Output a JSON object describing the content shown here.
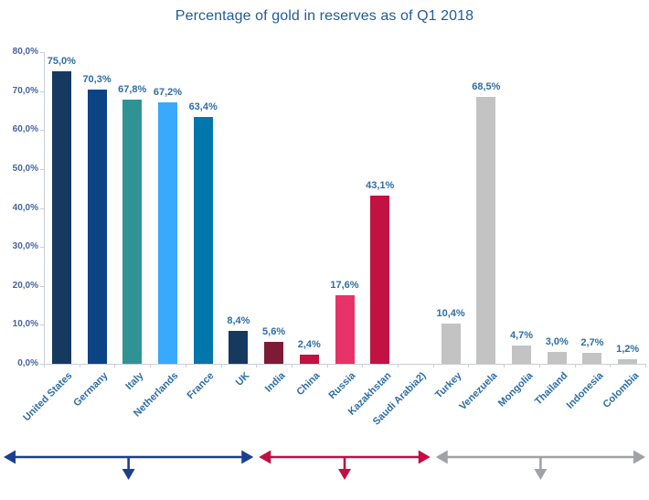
{
  "chart_data": {
    "type": "bar",
    "title": "Percentage of gold in reserves as of Q1 2018",
    "xlabel": "",
    "ylabel": "",
    "ylim": [
      0,
      80
    ],
    "grid": false,
    "legend": "none",
    "y_tick_labels_top_to_bottom": [
      "80,0%",
      "70,0%",
      "60,0%",
      "50,0%",
      "40,0%",
      "30,0%",
      "20,0%",
      "10,0%",
      "0,0%"
    ],
    "categories": [
      "United States",
      "Germany",
      "Italy",
      "Netherlands",
      "France",
      "UK",
      "India",
      "China",
      "Russia",
      "Kazakhstan",
      "Saudi Arabia2)",
      "Turkey",
      "Venezuela",
      "Mongolia",
      "Thailand",
      "Indonesia",
      "Colombia"
    ],
    "values": [
      75.0,
      70.3,
      67.8,
      67.2,
      63.4,
      8.4,
      5.6,
      2.4,
      17.6,
      43.1,
      null,
      10.4,
      68.5,
      4.7,
      3.0,
      2.7,
      1.2
    ],
    "value_labels": [
      "75,0%",
      "70,3%",
      "67,8%",
      "67,2%",
      "63,4%",
      "8,4%",
      "5,6%",
      "2,4%",
      "17,6%",
      "43,1%",
      "",
      "10,4%",
      "68,5%",
      "4,7%",
      "3,0%",
      "2,7%",
      "1,2%"
    ],
    "bar_colors": [
      "#16395F",
      "#0B4385",
      "#2F9394",
      "#38A9FC",
      "#0077AC",
      "#16395F",
      "#7D1B37",
      "#C11243",
      "#E7336A",
      "#C11243",
      null,
      "#C3C3C3",
      "#C3C3C3",
      "#C3C3C3",
      "#C3C3C3",
      "#C3C3C3",
      "#C3C3C3"
    ],
    "group_arrows": [
      {
        "color": "#1C3E92",
        "from_category": "United States",
        "to_category": "UK"
      },
      {
        "color": "#C00F45",
        "from_category": "India",
        "to_category": "Saudi Arabia2)"
      },
      {
        "color": "#A0A2A5",
        "from_category": "Turkey",
        "to_category": "Colombia"
      }
    ],
    "colors": {
      "title": "#1F5C99",
      "value_label": "#2E6DA4",
      "x_label": "#2E6DA4",
      "y_label": "#44659E",
      "axis_line": "#C9CED6",
      "background": "#FFFFFF"
    }
  }
}
